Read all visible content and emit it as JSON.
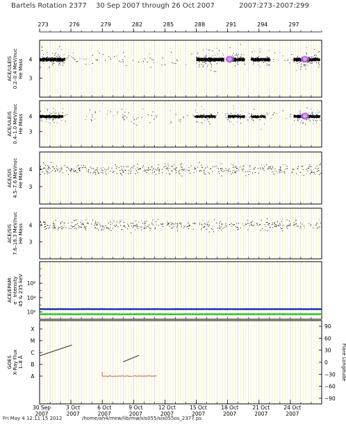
{
  "header": {
    "title": "Bartels Rotation 2377",
    "date_range": "30 Sep 2007 through 26 Oct 2007",
    "doy_range": "2007:273–2007:299"
  },
  "footer": {
    "timestamp": "Fri May  4 12:11:15 2012",
    "path": "/home/ah4/mew/lib/mw/sis055/sis055os_2377.ps"
  },
  "chart_data": {
    "type": "multi-panel time series",
    "x_doy_ticks": [
      "273",
      "276",
      "279",
      "282",
      "285",
      "288",
      "291",
      "294",
      "297"
    ],
    "x_date_ticks": [
      {
        "day": "30 Sep",
        "year": "2007"
      },
      {
        "day": "3 Oct",
        "year": "2007"
      },
      {
        "day": "6 Oct",
        "year": "2007"
      },
      {
        "day": "9 Oct",
        "year": "2007"
      },
      {
        "day": "12 Oct",
        "year": "2007"
      },
      {
        "day": "15 Oct",
        "year": "2007"
      },
      {
        "day": "18 Oct",
        "year": "2007"
      },
      {
        "day": "21 Oct",
        "year": "2007"
      },
      {
        "day": "24 Oct",
        "year": "2007"
      }
    ],
    "x_range_doy": [
      273,
      300
    ],
    "panels": [
      {
        "id": "uleis-low",
        "ylabel": [
          "ACE/ULEIS",
          "0.2–0.4 MeV/nuc",
          "He Mass"
        ],
        "yticks": [
          "4",
          "3"
        ],
        "ylim": [
          2,
          5
        ],
        "type": "scatter",
        "bands": [
          {
            "from": 273.0,
            "to": 275.4,
            "density": 1.0
          },
          {
            "from": 288.0,
            "to": 290.6,
            "density": 1.0
          },
          {
            "from": 291.0,
            "to": 292.6,
            "density": 1.0
          },
          {
            "from": 293.2,
            "to": 295.0,
            "density": 0.8
          },
          {
            "from": 297.3,
            "to": 299.8,
            "density": 1.0
          }
        ],
        "hotspots": [
          {
            "x": 291.2,
            "y": 4.0
          },
          {
            "x": 298.4,
            "y": 4.0
          }
        ]
      },
      {
        "id": "uleis-high",
        "ylabel": [
          "ACE/ULEIS",
          "0.4–1.0 MeV/nuc",
          "He Mass"
        ],
        "yticks": [
          "4",
          "3"
        ],
        "ylim": [
          2,
          5
        ],
        "type": "scatter",
        "bands": [
          {
            "from": 273.0,
            "to": 275.2,
            "density": 0.9
          },
          {
            "from": 287.8,
            "to": 289.8,
            "density": 0.5
          },
          {
            "from": 291.0,
            "to": 292.6,
            "density": 0.6
          },
          {
            "from": 293.2,
            "to": 294.6,
            "density": 0.4
          },
          {
            "from": 297.3,
            "to": 299.8,
            "density": 1.0
          }
        ],
        "hotspots": [
          {
            "x": 298.4,
            "y": 4.0
          }
        ]
      },
      {
        "id": "sis-low",
        "ylabel": [
          "ACE/SIS",
          "4.5–7.6 MeV/nuc",
          "He Mass"
        ],
        "yticks": [
          "4",
          "3"
        ],
        "ylim": [
          2,
          5
        ],
        "type": "scatter-sparse"
      },
      {
        "id": "sis-high",
        "ylabel": [
          "ACE/SIS",
          "7.6–16.3 MeV/nuc",
          "He Mass"
        ],
        "yticks": [
          "4",
          "3"
        ],
        "ylim": [
          2,
          5
        ],
        "type": "scatter-sparse"
      },
      {
        "id": "epam",
        "ylabel": [
          "ACE/EPAM",
          "e⁻ Intensity",
          "45 & 235 keV"
        ],
        "yticks": [
          "10⁶",
          "10⁴",
          "10²"
        ],
        "ylim_log10": [
          1,
          9
        ],
        "type": "line",
        "series": [
          {
            "color": "#1a2fb8",
            "log10_level": 2.4
          },
          {
            "color": "#22cc22",
            "log10_level": 1.7
          }
        ]
      },
      {
        "id": "goes",
        "ylabel": [
          "GOES",
          "X-Ray Flux",
          "1–8 Å"
        ],
        "yticks": [
          "X",
          "M",
          "C",
          "B",
          "A"
        ],
        "y2label": "Flare Longitude",
        "y2ticks": [
          "90",
          "60",
          "30",
          "0",
          "−30",
          "−60",
          "−90"
        ],
        "y2lim": [
          -90,
          90
        ],
        "type": "segments",
        "flare_segments": [
          {
            "x0": 273.0,
            "x1": 276.1,
            "lon0": 16,
            "lon1": 43
          },
          {
            "x0": 281.0,
            "x1": 282.5,
            "lon0": 1,
            "lon1": 17
          }
        ],
        "xray_trace": {
          "color": "#d04020",
          "from": 279.0,
          "to": 284.3,
          "class": "A"
        }
      }
    ],
    "grid": {
      "yellow_every_quarter_day": true,
      "magenta_hours": true
    }
  }
}
